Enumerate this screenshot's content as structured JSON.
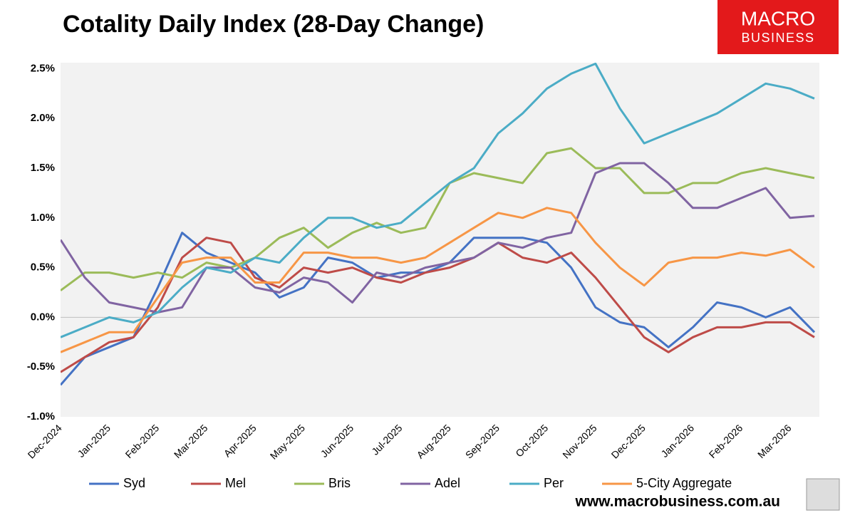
{
  "chart_data": {
    "type": "line",
    "title": "Cotality Daily Index (28-Day Change)",
    "categories": [
      "Dec-2024",
      null,
      "Jan-2025",
      null,
      "Feb-2025",
      null,
      "Mar-2025",
      null,
      "Apr-2025",
      null,
      "May-2025",
      null,
      "Jun-2025",
      null,
      "Jul-2025",
      null,
      "Aug-2025",
      null,
      "Sep-2025",
      null,
      "Oct-2025",
      null,
      "Nov-2025",
      null,
      "Dec-2025",
      null,
      "Jan-2026",
      null,
      "Feb-2026",
      null,
      "Mar-2026",
      null
    ],
    "series": [
      {
        "name": "Syd",
        "color": "#4472c4",
        "values": [
          -0.68,
          -0.4,
          -0.3,
          -0.2,
          0.3,
          0.85,
          0.65,
          0.55,
          0.45,
          0.2,
          0.3,
          0.6,
          0.55,
          0.4,
          0.45,
          0.45,
          0.55,
          0.8,
          0.8,
          0.8,
          0.75,
          0.5,
          0.1,
          -0.05,
          -0.1,
          -0.3,
          -0.1,
          0.15,
          0.1,
          0.0,
          0.1,
          -0.15
        ]
      },
      {
        "name": "Mel",
        "color": "#be4b48",
        "values": [
          -0.55,
          -0.4,
          -0.25,
          -0.2,
          0.1,
          0.6,
          0.8,
          0.75,
          0.4,
          0.3,
          0.5,
          0.45,
          0.5,
          0.4,
          0.35,
          0.45,
          0.5,
          0.6,
          0.75,
          0.6,
          0.55,
          0.65,
          0.4,
          0.1,
          -0.2,
          -0.35,
          -0.2,
          -0.1,
          -0.1,
          -0.05,
          -0.05,
          -0.2
        ]
      },
      {
        "name": "Bris",
        "color": "#9bbb59",
        "values": [
          0.27,
          0.45,
          0.45,
          0.4,
          0.45,
          0.4,
          0.55,
          0.5,
          0.6,
          0.8,
          0.9,
          0.7,
          0.85,
          0.95,
          0.85,
          0.9,
          1.35,
          1.45,
          1.4,
          1.35,
          1.65,
          1.7,
          1.5,
          1.5,
          1.25,
          1.25,
          1.35,
          1.35,
          1.45,
          1.5,
          1.45,
          1.4
        ]
      },
      {
        "name": "Adel",
        "color": "#8064a2",
        "values": [
          0.78,
          0.4,
          0.15,
          0.1,
          0.05,
          0.1,
          0.5,
          0.5,
          0.3,
          0.25,
          0.4,
          0.35,
          0.15,
          0.45,
          0.4,
          0.5,
          0.55,
          0.6,
          0.75,
          0.7,
          0.8,
          0.85,
          1.45,
          1.55,
          1.55,
          1.35,
          1.1,
          1.1,
          1.2,
          1.3,
          1.0,
          1.02
        ]
      },
      {
        "name": "Per",
        "color": "#4bacc6",
        "values": [
          -0.2,
          -0.1,
          0.0,
          -0.05,
          0.05,
          0.3,
          0.5,
          0.45,
          0.6,
          0.55,
          0.8,
          1.0,
          1.0,
          0.9,
          0.95,
          1.15,
          1.35,
          1.5,
          1.85,
          2.05,
          2.3,
          2.45,
          2.55,
          2.1,
          1.75,
          1.85,
          1.95,
          2.05,
          2.2,
          2.35,
          2.3,
          2.2
        ]
      },
      {
        "name": "5-City Aggregate",
        "color": "#f79646",
        "values": [
          -0.35,
          -0.25,
          -0.15,
          -0.15,
          0.2,
          0.55,
          0.6,
          0.6,
          0.35,
          0.35,
          0.65,
          0.65,
          0.6,
          0.6,
          0.55,
          0.6,
          0.75,
          0.9,
          1.05,
          1.0,
          1.1,
          1.05,
          0.75,
          0.5,
          0.32,
          0.55,
          0.6,
          0.6,
          0.65,
          0.62,
          0.68,
          0.5
        ]
      }
    ],
    "ylim": [
      -1.0,
      2.56
    ],
    "yticks": [
      {
        "value": -1.0,
        "label": "-1.0%"
      },
      {
        "value": -0.5,
        "label": "-0.5%"
      },
      {
        "value": 0.0,
        "label": "0.0%"
      },
      {
        "value": 0.5,
        "label": "0.5%"
      },
      {
        "value": 1.0,
        "label": "1.0%"
      },
      {
        "value": 1.5,
        "label": "1.5%"
      },
      {
        "value": 2.0,
        "label": "2.0%"
      },
      {
        "value": 2.5,
        "label": "2.5%"
      }
    ],
    "grid": false,
    "legend": "bottom"
  },
  "logo": {
    "line1": "MACRO",
    "line2": "BUSINESS"
  },
  "footer_url": "www.macrobusiness.com.au"
}
